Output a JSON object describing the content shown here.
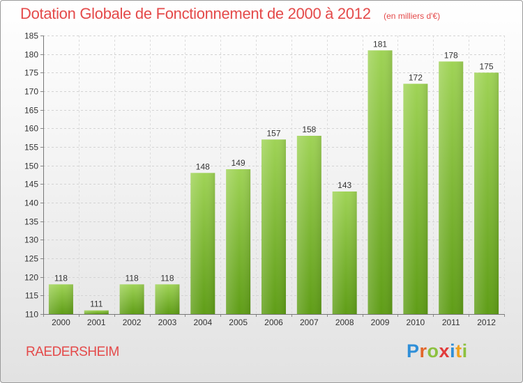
{
  "title": "Dotation Globale de Fonctionnement de 2000 à 2012",
  "unit": "(en milliers d'€)",
  "city": "RAEDERSHEIM",
  "logo": {
    "text": "Proxiti",
    "letters": [
      {
        "ch": "P",
        "color": "#2f8fd8"
      },
      {
        "ch": "r",
        "color": "#e2662a"
      },
      {
        "ch": "o",
        "color": "#8cc13f"
      },
      {
        "ch": "x",
        "color": "#e13b3b"
      },
      {
        "ch": "i",
        "color": "#2f8fd8"
      },
      {
        "ch": "t",
        "color": "#f0a21e"
      },
      {
        "ch": "i",
        "color": "#8cc13f"
      }
    ]
  },
  "colors": {
    "bar_top": "#9fd356",
    "bar_bottom": "#5f9d17",
    "accent": "#e44a4a"
  },
  "chart_data": {
    "type": "bar",
    "categories": [
      "2000",
      "2001",
      "2002",
      "2003",
      "2004",
      "2005",
      "2006",
      "2007",
      "2008",
      "2009",
      "2010",
      "2011",
      "2012"
    ],
    "values": [
      118,
      111,
      118,
      118,
      148,
      149,
      157,
      158,
      143,
      181,
      172,
      178,
      175
    ],
    "ylim": [
      110,
      185
    ],
    "yticks": [
      110,
      115,
      120,
      125,
      130,
      135,
      140,
      145,
      150,
      155,
      160,
      165,
      170,
      175,
      180,
      185
    ],
    "grid": true
  }
}
